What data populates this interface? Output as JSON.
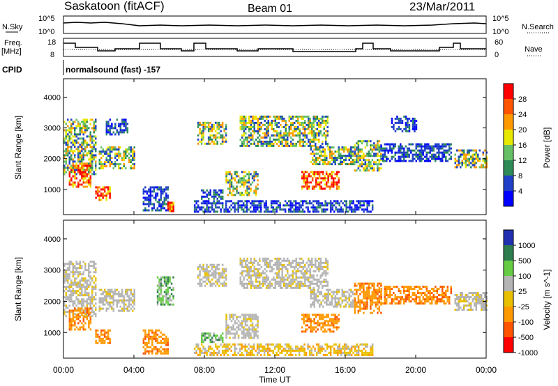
{
  "header": {
    "station": "Saskatoon (fitACF)",
    "beam": "Beam 01",
    "date": "23/Mar/2011"
  },
  "top_panels": {
    "nsky_label": "N.Sky",
    "nsearch_label": "N.Search",
    "nsky_ticks": [
      "10^5",
      "10^0"
    ],
    "nsearch_ticks": [
      "10^5",
      "10^0"
    ],
    "freq_label_1": "Freq.",
    "freq_label_2": "[MHz]",
    "freq_ticks": [
      "18",
      "8"
    ],
    "nave_label": "Nave",
    "nave_ticks": [
      "60",
      "0"
    ],
    "cpid_label": "CPID",
    "cpid_value": "normalsound (fast) -157"
  },
  "chart_data": [
    {
      "type": "heatmap",
      "name": "power",
      "ylabel": "Slant Range [km]",
      "ylim": [
        180,
        4600
      ],
      "yticks": [
        1000,
        2000,
        3000,
        4000
      ],
      "xlim": [
        0,
        24
      ],
      "xlabel": "",
      "colorbar_label": "Power [dB]",
      "colorbar_ticks": [
        "28",
        "24",
        "20",
        "16",
        "12",
        "8",
        "4"
      ],
      "colorbar_colors": [
        "#0000ff",
        "#2040c8",
        "#2e8b57",
        "#66c066",
        "#e8e800",
        "#ff9900",
        "#ff5500",
        "#ff0000"
      ],
      "echo_regions": [
        {
          "t0": 0.0,
          "t1": 1.8,
          "r0": 1500,
          "r1": 3300,
          "level": "mid"
        },
        {
          "t0": 0.3,
          "t1": 1.5,
          "r0": 1100,
          "r1": 1800,
          "level": "high"
        },
        {
          "t0": 1.8,
          "t1": 2.6,
          "r0": 650,
          "r1": 1100,
          "level": "high"
        },
        {
          "t0": 2.0,
          "t1": 4.0,
          "r0": 1700,
          "r1": 2400,
          "level": "mid"
        },
        {
          "t0": 2.4,
          "t1": 3.6,
          "r0": 2800,
          "r1": 3300,
          "level": "low"
        },
        {
          "t0": 4.5,
          "t1": 5.9,
          "r0": 300,
          "r1": 1100,
          "level": "low"
        },
        {
          "t0": 5.9,
          "t1": 6.2,
          "r0": 280,
          "r1": 600,
          "level": "high"
        },
        {
          "t0": 7.6,
          "t1": 9.2,
          "r0": 2500,
          "r1": 3200,
          "level": "mid"
        },
        {
          "t0": 7.8,
          "t1": 9.0,
          "r0": 700,
          "r1": 1000,
          "level": "low"
        },
        {
          "t0": 9.2,
          "t1": 11.0,
          "r0": 800,
          "r1": 1600,
          "level": "mid"
        },
        {
          "t0": 10.0,
          "t1": 15.0,
          "r0": 2400,
          "r1": 3400,
          "level": "mid"
        },
        {
          "t0": 14.0,
          "t1": 16.5,
          "r0": 1800,
          "r1": 2400,
          "level": "mid"
        },
        {
          "t0": 13.5,
          "t1": 15.6,
          "r0": 1000,
          "r1": 1600,
          "level": "high"
        },
        {
          "t0": 16.5,
          "t1": 18.0,
          "r0": 1600,
          "r1": 2600,
          "level": "mid"
        },
        {
          "t0": 18.0,
          "t1": 22.0,
          "r0": 1900,
          "r1": 2500,
          "level": "low"
        },
        {
          "t0": 18.6,
          "t1": 20.0,
          "r0": 2900,
          "r1": 3400,
          "level": "low"
        },
        {
          "t0": 22.2,
          "t1": 24.0,
          "r0": 1700,
          "r1": 2300,
          "level": "mid"
        },
        {
          "t0": 7.4,
          "t1": 17.5,
          "r0": 250,
          "r1": 650,
          "level": "low"
        }
      ]
    },
    {
      "type": "heatmap",
      "name": "velocity",
      "ylabel": "Slant Range [km]",
      "ylim": [
        180,
        4600
      ],
      "yticks": [
        1000,
        2000,
        3000,
        4000
      ],
      "xlim": [
        0,
        24
      ],
      "xlabel": "Time UT",
      "xticks": [
        "00:00",
        "04:00",
        "08:00",
        "12:00",
        "16:00",
        "20:00",
        "00:00"
      ],
      "colorbar_label": "Velocity [m s^-1]",
      "colorbar_ticks": [
        "1000",
        "500",
        "100",
        "25",
        "-25",
        "-100",
        "-500",
        "-1000"
      ],
      "colorbar_colors": [
        "#2030b0",
        "#2e7d4f",
        "#66cc44",
        "#b5b5b5",
        "#e8c000",
        "#ff9900",
        "#ff5500",
        "#ff0000"
      ],
      "echo_regions": [
        {
          "t0": 0.0,
          "t1": 1.8,
          "r0": 1500,
          "r1": 3300,
          "level": "gray"
        },
        {
          "t0": 0.3,
          "t1": 1.5,
          "r0": 1100,
          "r1": 1800,
          "level": "orange"
        },
        {
          "t0": 1.8,
          "t1": 2.6,
          "r0": 650,
          "r1": 1100,
          "level": "orange"
        },
        {
          "t0": 2.0,
          "t1": 4.0,
          "r0": 1700,
          "r1": 2400,
          "level": "gray"
        },
        {
          "t0": 4.5,
          "t1": 5.9,
          "r0": 300,
          "r1": 1100,
          "level": "orange"
        },
        {
          "t0": 5.3,
          "t1": 6.2,
          "r0": 1900,
          "r1": 2800,
          "level": "green"
        },
        {
          "t0": 7.6,
          "t1": 9.2,
          "r0": 2500,
          "r1": 3200,
          "level": "gray"
        },
        {
          "t0": 7.8,
          "t1": 9.0,
          "r0": 700,
          "r1": 1000,
          "level": "green"
        },
        {
          "t0": 9.2,
          "t1": 11.0,
          "r0": 800,
          "r1": 1600,
          "level": "gray"
        },
        {
          "t0": 10.0,
          "t1": 15.0,
          "r0": 2400,
          "r1": 3400,
          "level": "gray"
        },
        {
          "t0": 14.0,
          "t1": 16.5,
          "r0": 1800,
          "r1": 2400,
          "level": "gray"
        },
        {
          "t0": 13.5,
          "t1": 15.6,
          "r0": 1000,
          "r1": 1600,
          "level": "orange"
        },
        {
          "t0": 16.5,
          "t1": 18.0,
          "r0": 1600,
          "r1": 2600,
          "level": "orange"
        },
        {
          "t0": 18.0,
          "t1": 22.0,
          "r0": 1900,
          "r1": 2500,
          "level": "orange"
        },
        {
          "t0": 22.2,
          "t1": 24.0,
          "r0": 1700,
          "r1": 2300,
          "level": "gray"
        },
        {
          "t0": 7.4,
          "t1": 17.5,
          "r0": 250,
          "r1": 650,
          "level": "yellow"
        }
      ]
    }
  ]
}
